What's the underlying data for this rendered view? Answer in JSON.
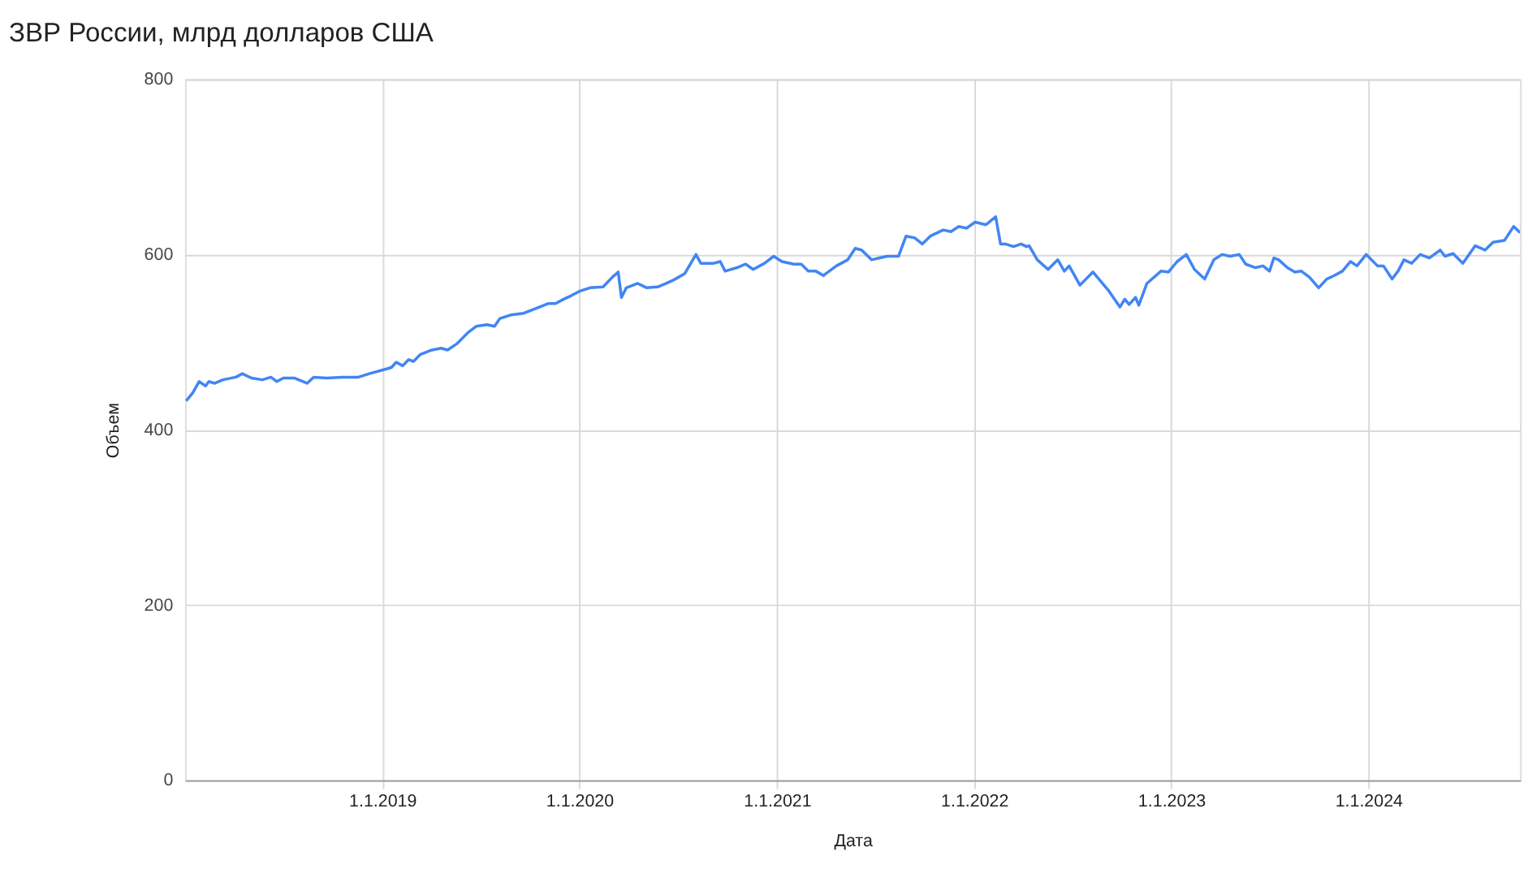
{
  "chart_data": {
    "type": "line",
    "title": "ЗВР России, млрд долларов США",
    "xlabel": "Дата",
    "ylabel": "Объем",
    "x": [
      "2018-01-03",
      "2018-01-15",
      "2018-01-27",
      "2018-02-08",
      "2018-02-14",
      "2018-02-25",
      "2018-03-12",
      "2018-04-05",
      "2018-04-17",
      "2018-05-04",
      "2018-05-24",
      "2018-06-09",
      "2018-06-20",
      "2018-07-02",
      "2018-07-22",
      "2018-08-15",
      "2018-08-27",
      "2018-09-20",
      "2018-10-19",
      "2018-11-18",
      "2018-12-08",
      "2019-01-01",
      "2019-01-18",
      "2019-01-27",
      "2019-02-08",
      "2019-02-19",
      "2019-02-28",
      "2019-03-13",
      "2019-04-03",
      "2019-04-20",
      "2019-05-02",
      "2019-05-19",
      "2019-06-09",
      "2019-06-24",
      "2019-07-14",
      "2019-07-28",
      "2019-08-07",
      "2019-08-27",
      "2019-09-20",
      "2019-10-19",
      "2019-11-04",
      "2019-11-18",
      "2019-12-03",
      "2019-12-17",
      "2020-01-01",
      "2020-01-21",
      "2020-02-14",
      "2020-03-02",
      "2020-03-13",
      "2020-03-19",
      "2020-03-28",
      "2020-04-18",
      "2020-05-05",
      "2020-05-25",
      "2020-06-10",
      "2020-06-24",
      "2020-07-14",
      "2020-08-04",
      "2020-08-13",
      "2020-09-06",
      "2020-09-18",
      "2020-09-27",
      "2020-10-19",
      "2020-11-04",
      "2020-11-18",
      "2020-12-09",
      "2020-12-26",
      "2021-01-10",
      "2021-02-01",
      "2021-02-15",
      "2021-02-28",
      "2021-03-14",
      "2021-03-28",
      "2021-04-21",
      "2021-05-12",
      "2021-05-26",
      "2021-06-07",
      "2021-06-25",
      "2021-07-09",
      "2021-07-24",
      "2021-08-02",
      "2021-08-14",
      "2021-08-28",
      "2021-09-13",
      "2021-09-27",
      "2021-10-12",
      "2021-11-05",
      "2021-11-19",
      "2021-12-04",
      "2021-12-18",
      "2022-01-03",
      "2022-01-23",
      "2022-02-10",
      "2022-02-19",
      "2022-02-28",
      "2022-03-15",
      "2022-03-29",
      "2022-04-08",
      "2022-04-13",
      "2022-04-28",
      "2022-05-18",
      "2022-06-05",
      "2022-06-17",
      "2022-06-26",
      "2022-07-16",
      "2022-08-09",
      "2022-09-08",
      "2022-09-28",
      "2022-10-07",
      "2022-10-15",
      "2022-10-27",
      "2022-11-02",
      "2022-11-17",
      "2022-12-13",
      "2022-12-27",
      "2023-01-12",
      "2023-01-29",
      "2023-02-13",
      "2023-03-04",
      "2023-03-21",
      "2023-04-05",
      "2023-04-20",
      "2023-05-07",
      "2023-05-19",
      "2023-06-06",
      "2023-06-20",
      "2023-07-02",
      "2023-07-10",
      "2023-07-19",
      "2023-08-04",
      "2023-08-18",
      "2023-08-30",
      "2023-09-14",
      "2023-10-01",
      "2023-10-16",
      "2023-10-30",
      "2023-11-14",
      "2023-11-29",
      "2023-12-11",
      "2023-12-28",
      "2024-01-18",
      "2024-01-29",
      "2024-02-14",
      "2024-02-25",
      "2024-03-07",
      "2024-03-21",
      "2024-04-06",
      "2024-04-23",
      "2024-05-13",
      "2024-05-22",
      "2024-06-06",
      "2024-06-24",
      "2024-07-17",
      "2024-08-04",
      "2024-08-19",
      "2024-09-09",
      "2024-09-26",
      "2024-10-08"
    ],
    "series": [
      {
        "color": "#4285f4",
        "values": [
          433,
          442,
          455,
          450,
          455,
          453,
          457,
          460,
          464,
          459,
          457,
          460,
          455,
          459,
          459,
          453,
          460,
          459,
          460,
          460,
          464,
          468,
          471,
          477,
          473,
          480,
          478,
          486,
          491,
          493,
          491,
          498,
          511,
          518,
          520,
          518,
          527,
          531,
          533,
          540,
          544,
          544,
          549,
          553,
          558,
          562,
          563,
          574,
          580,
          551,
          562,
          567,
          562,
          563,
          567,
          571,
          578,
          600,
          590,
          590,
          592,
          581,
          585,
          589,
          583,
          590,
          598,
          592,
          589,
          589,
          581,
          581,
          576,
          587,
          594,
          607,
          605,
          594,
          596,
          598,
          598,
          598,
          621,
          619,
          612,
          621,
          628,
          626,
          632,
          630,
          637,
          634,
          643,
          612,
          612,
          609,
          612,
          609,
          610,
          594,
          583,
          594,
          581,
          587,
          565,
          580,
          558,
          540,
          549,
          543,
          551,
          542,
          567,
          581,
          580,
          592,
          600,
          583,
          572,
          594,
          600,
          598,
          600,
          589,
          585,
          587,
          581,
          596,
          594,
          585,
          580,
          581,
          574,
          562,
          572,
          576,
          581,
          592,
          587,
          600,
          587,
          587,
          572,
          581,
          594,
          590,
          600,
          596,
          605,
          598,
          601,
          590,
          610,
          605,
          614,
          616,
          632,
          625
        ]
      }
    ],
    "xlim": [
      "2018-01-01",
      "2024-10-08"
    ],
    "xticks": [
      {
        "value": "2019-01-01",
        "label": "1.1.2019"
      },
      {
        "value": "2020-01-01",
        "label": "1.1.2020"
      },
      {
        "value": "2021-01-01",
        "label": "1.1.2021"
      },
      {
        "value": "2022-01-01",
        "label": "1.1.2022"
      },
      {
        "value": "2023-01-01",
        "label": "1.1.2023"
      },
      {
        "value": "2024-01-01",
        "label": "1.1.2024"
      }
    ],
    "ylim": [
      0,
      800
    ],
    "yticks": [
      0,
      200,
      400,
      600,
      800
    ],
    "grid": true,
    "marker": "none",
    "line_style": "solid"
  }
}
